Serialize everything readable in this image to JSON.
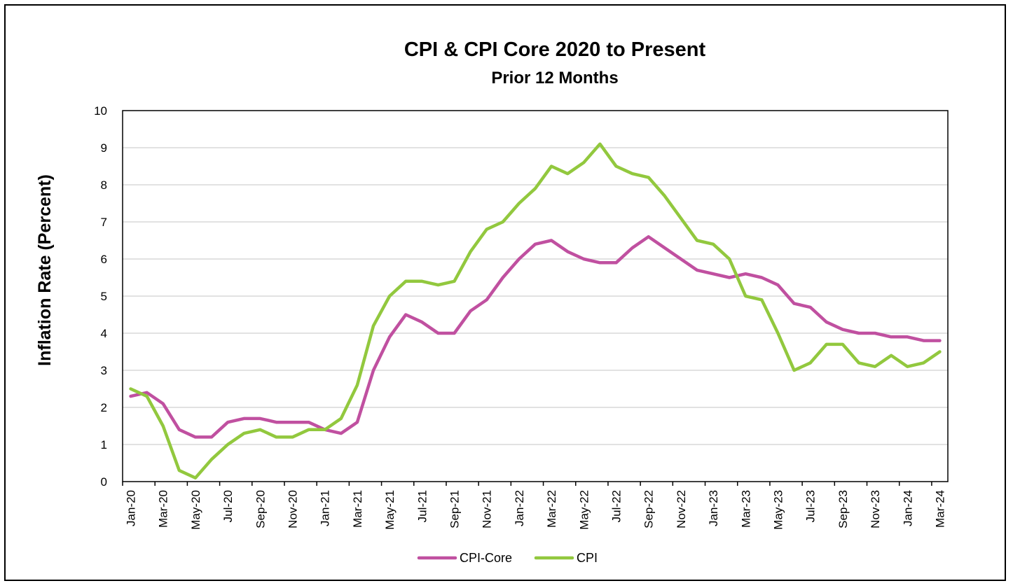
{
  "chart_data": {
    "type": "line",
    "title": "CPI & CPI Core  2020 to Present",
    "subtitle": "Prior 12 Months",
    "xlabel": "",
    "ylabel": "Inflation Rate (Percent)",
    "ylim": [
      0,
      10
    ],
    "yticks": [
      0,
      1,
      2,
      3,
      4,
      5,
      6,
      7,
      8,
      9,
      10
    ],
    "grid": true,
    "legend_position": "bottom",
    "x": [
      "Jan-20",
      "Feb-20",
      "Mar-20",
      "Apr-20",
      "May-20",
      "Jun-20",
      "Jul-20",
      "Aug-20",
      "Sep-20",
      "Oct-20",
      "Nov-20",
      "Dec-20",
      "Jan-21",
      "Feb-21",
      "Mar-21",
      "Apr-21",
      "May-21",
      "Jun-21",
      "Jul-21",
      "Aug-21",
      "Sep-21",
      "Oct-21",
      "Nov-21",
      "Dec-21",
      "Jan-22",
      "Feb-22",
      "Mar-22",
      "Apr-22",
      "May-22",
      "Jun-22",
      "Jul-22",
      "Aug-22",
      "Sep-22",
      "Oct-22",
      "Nov-22",
      "Dec-22",
      "Jan-23",
      "Feb-23",
      "Mar-23",
      "Apr-23",
      "May-23",
      "Jun-23",
      "Jul-23",
      "Aug-23",
      "Sep-23",
      "Oct-23",
      "Nov-23",
      "Dec-23",
      "Jan-24",
      "Feb-24",
      "Mar-24"
    ],
    "xtick_labels": [
      "Jan-20",
      "Mar-20",
      "May-20",
      "Jul-20",
      "Sep-20",
      "Nov-20",
      "Jan-21",
      "Mar-21",
      "May-21",
      "Jul-21",
      "Sep-21",
      "Nov-21",
      "Jan-22",
      "Mar-22",
      "May-22",
      "Jul-22",
      "Sep-22",
      "Nov-22",
      "Jan-23",
      "Mar-23",
      "May-23",
      "Jul-23",
      "Sep-23",
      "Nov-23",
      "Jan-24",
      "Mar-24"
    ],
    "series": [
      {
        "name": "CPI-Core",
        "color": "#c050a0",
        "values": [
          2.3,
          2.4,
          2.1,
          1.4,
          1.2,
          1.2,
          1.6,
          1.7,
          1.7,
          1.6,
          1.6,
          1.6,
          1.4,
          1.3,
          1.6,
          3.0,
          3.9,
          4.5,
          4.3,
          4.0,
          4.0,
          4.6,
          4.9,
          5.5,
          6.0,
          6.4,
          6.5,
          6.2,
          6.0,
          5.9,
          5.9,
          6.3,
          6.6,
          6.3,
          6.0,
          5.7,
          5.6,
          5.5,
          5.6,
          5.5,
          5.3,
          4.8,
          4.7,
          4.3,
          4.1,
          4.0,
          4.0,
          3.9,
          3.9,
          3.8,
          3.8
        ]
      },
      {
        "name": "CPI",
        "color": "#92c83e",
        "values": [
          2.5,
          2.3,
          1.5,
          0.3,
          0.1,
          0.6,
          1.0,
          1.3,
          1.4,
          1.2,
          1.2,
          1.4,
          1.4,
          1.7,
          2.6,
          4.2,
          5.0,
          5.4,
          5.4,
          5.3,
          5.4,
          6.2,
          6.8,
          7.0,
          7.5,
          7.9,
          8.5,
          8.3,
          8.6,
          9.1,
          8.5,
          8.3,
          8.2,
          7.7,
          7.1,
          6.5,
          6.4,
          6.0,
          5.0,
          4.9,
          4.0,
          3.0,
          3.2,
          3.7,
          3.7,
          3.2,
          3.1,
          3.4,
          3.1,
          3.2,
          3.5
        ]
      }
    ]
  }
}
